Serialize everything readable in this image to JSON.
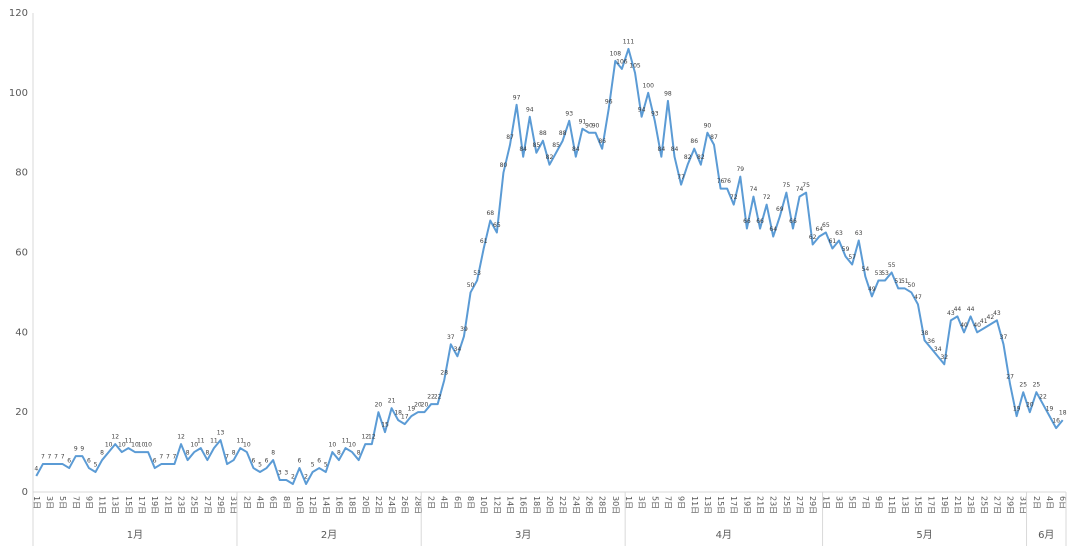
{
  "chart_data": {
    "type": "line",
    "categories": [
      "1日",
      null,
      "3日",
      null,
      "5日",
      null,
      "7日",
      null,
      "9日",
      null,
      "11日",
      null,
      "13日",
      null,
      "15日",
      null,
      "17日",
      null,
      "19日",
      null,
      "21日",
      null,
      "23日",
      null,
      "25日",
      null,
      "27日",
      null,
      "29日",
      null,
      "31日",
      null,
      "2日",
      null,
      "4日",
      null,
      "6日",
      null,
      "8日",
      null,
      "10日",
      null,
      "12日",
      null,
      "14日",
      null,
      "16日",
      null,
      "18日",
      null,
      "20日",
      null,
      "22日",
      null,
      "24日",
      null,
      "26日",
      null,
      "28日",
      null,
      "2日",
      null,
      "4日",
      null,
      "6日",
      null,
      "8日",
      null,
      "10日",
      null,
      "12日",
      null,
      "14日",
      null,
      "16日",
      null,
      "18日",
      null,
      "20日",
      null,
      "22日",
      null,
      "24日",
      null,
      "26日",
      null,
      "28日",
      null,
      "30日",
      null,
      "1日",
      null,
      "3日",
      null,
      "5日",
      null,
      "7日",
      null,
      "9日",
      null,
      "11日",
      null,
      "13日",
      null,
      "15日",
      null,
      "17日",
      null,
      "19日",
      null,
      "21日",
      null,
      "23日",
      null,
      "25日",
      null,
      "27日",
      null,
      "29日",
      null,
      "1日",
      null,
      "3日",
      null,
      "5日",
      null,
      "7日",
      null,
      "9日",
      null,
      "11日",
      null,
      "13日",
      null,
      "15日",
      null,
      "17日",
      null,
      "19日",
      null,
      "21日",
      null,
      "23日",
      null,
      "25日",
      null,
      "27日",
      null,
      "29日",
      null,
      "31日",
      null,
      "2日",
      null,
      "4日",
      null,
      "6日"
    ],
    "groups": [
      "1月",
      "2月",
      "3月",
      "4月",
      "5月",
      "6月"
    ],
    "values": [
      4,
      7,
      7,
      7,
      7,
      6,
      9,
      9,
      6,
      5,
      8,
      10,
      12,
      10,
      11,
      10,
      10,
      10,
      6,
      7,
      7,
      7,
      12,
      8,
      10,
      11,
      8,
      11,
      13,
      7,
      8,
      11,
      10,
      6,
      5,
      6,
      8,
      3,
      3,
      2,
      6,
      2,
      5,
      6,
      5,
      10,
      8,
      11,
      10,
      8,
      12,
      12,
      20,
      15,
      21,
      18,
      17,
      19,
      20,
      20,
      22,
      22,
      28,
      37,
      34,
      39,
      50,
      53,
      61,
      68,
      65,
      80,
      87,
      97,
      84,
      94,
      85,
      88,
      82,
      85,
      88,
      93,
      84,
      91,
      90,
      90,
      86,
      96,
      108,
      106,
      111,
      105,
      94,
      100,
      93,
      84,
      98,
      84,
      77,
      82,
      86,
      82,
      90,
      87,
      76,
      76,
      72,
      79,
      66,
      74,
      66,
      72,
      64,
      69,
      75,
      66,
      74,
      75,
      62,
      64,
      65,
      61,
      63,
      59,
      57,
      63,
      54,
      49,
      53,
      53,
      55,
      51,
      51,
      50,
      47,
      38,
      36,
      34,
      32,
      43,
      44,
      40,
      44,
      40,
      41,
      42,
      43,
      37,
      27,
      19,
      25,
      20,
      25,
      22,
      19,
      16,
      18
    ],
    "color": "#5b9bd5",
    "ylim": [
      0,
      120
    ],
    "yticks": [
      0,
      20,
      40,
      60,
      80,
      100,
      120
    ],
    "grid": false
  }
}
